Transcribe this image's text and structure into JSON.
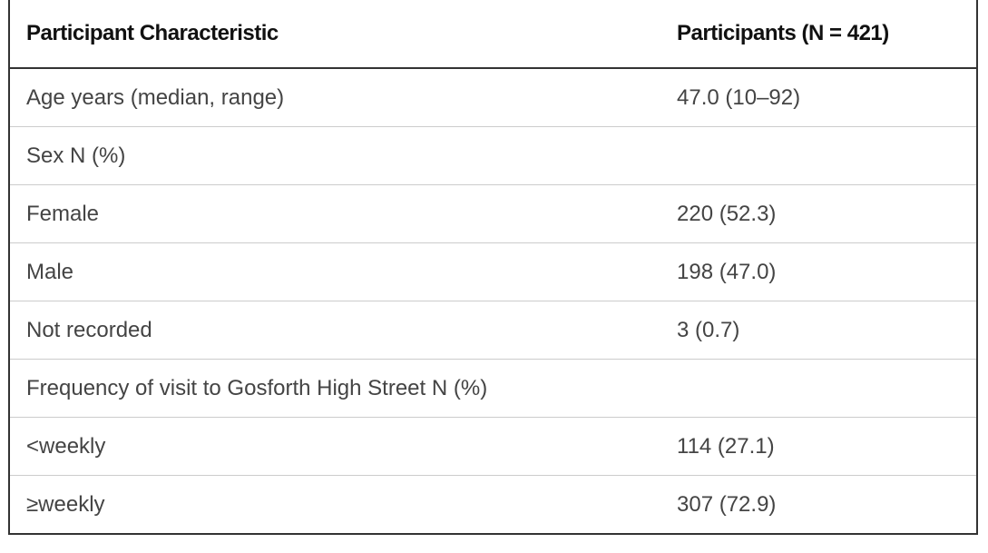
{
  "table": {
    "header": [
      "Participant Characteristic",
      "Participants (N = 421)"
    ],
    "rows": [
      [
        "Age years (median, range)",
        "47.0 (10–92)"
      ],
      [
        "Sex N (%)"
      ],
      [
        "Female",
        "220 (52.3)"
      ],
      [
        "Male",
        "198 (47.0)"
      ],
      [
        "Not recorded",
        "3 (0.7)"
      ],
      [
        "Frequency of visit to Gosforth High Street N (%)"
      ],
      [
        "<weekly",
        "114 (27.1)"
      ],
      [
        "≥weekly",
        "307 (72.9)"
      ]
    ]
  }
}
